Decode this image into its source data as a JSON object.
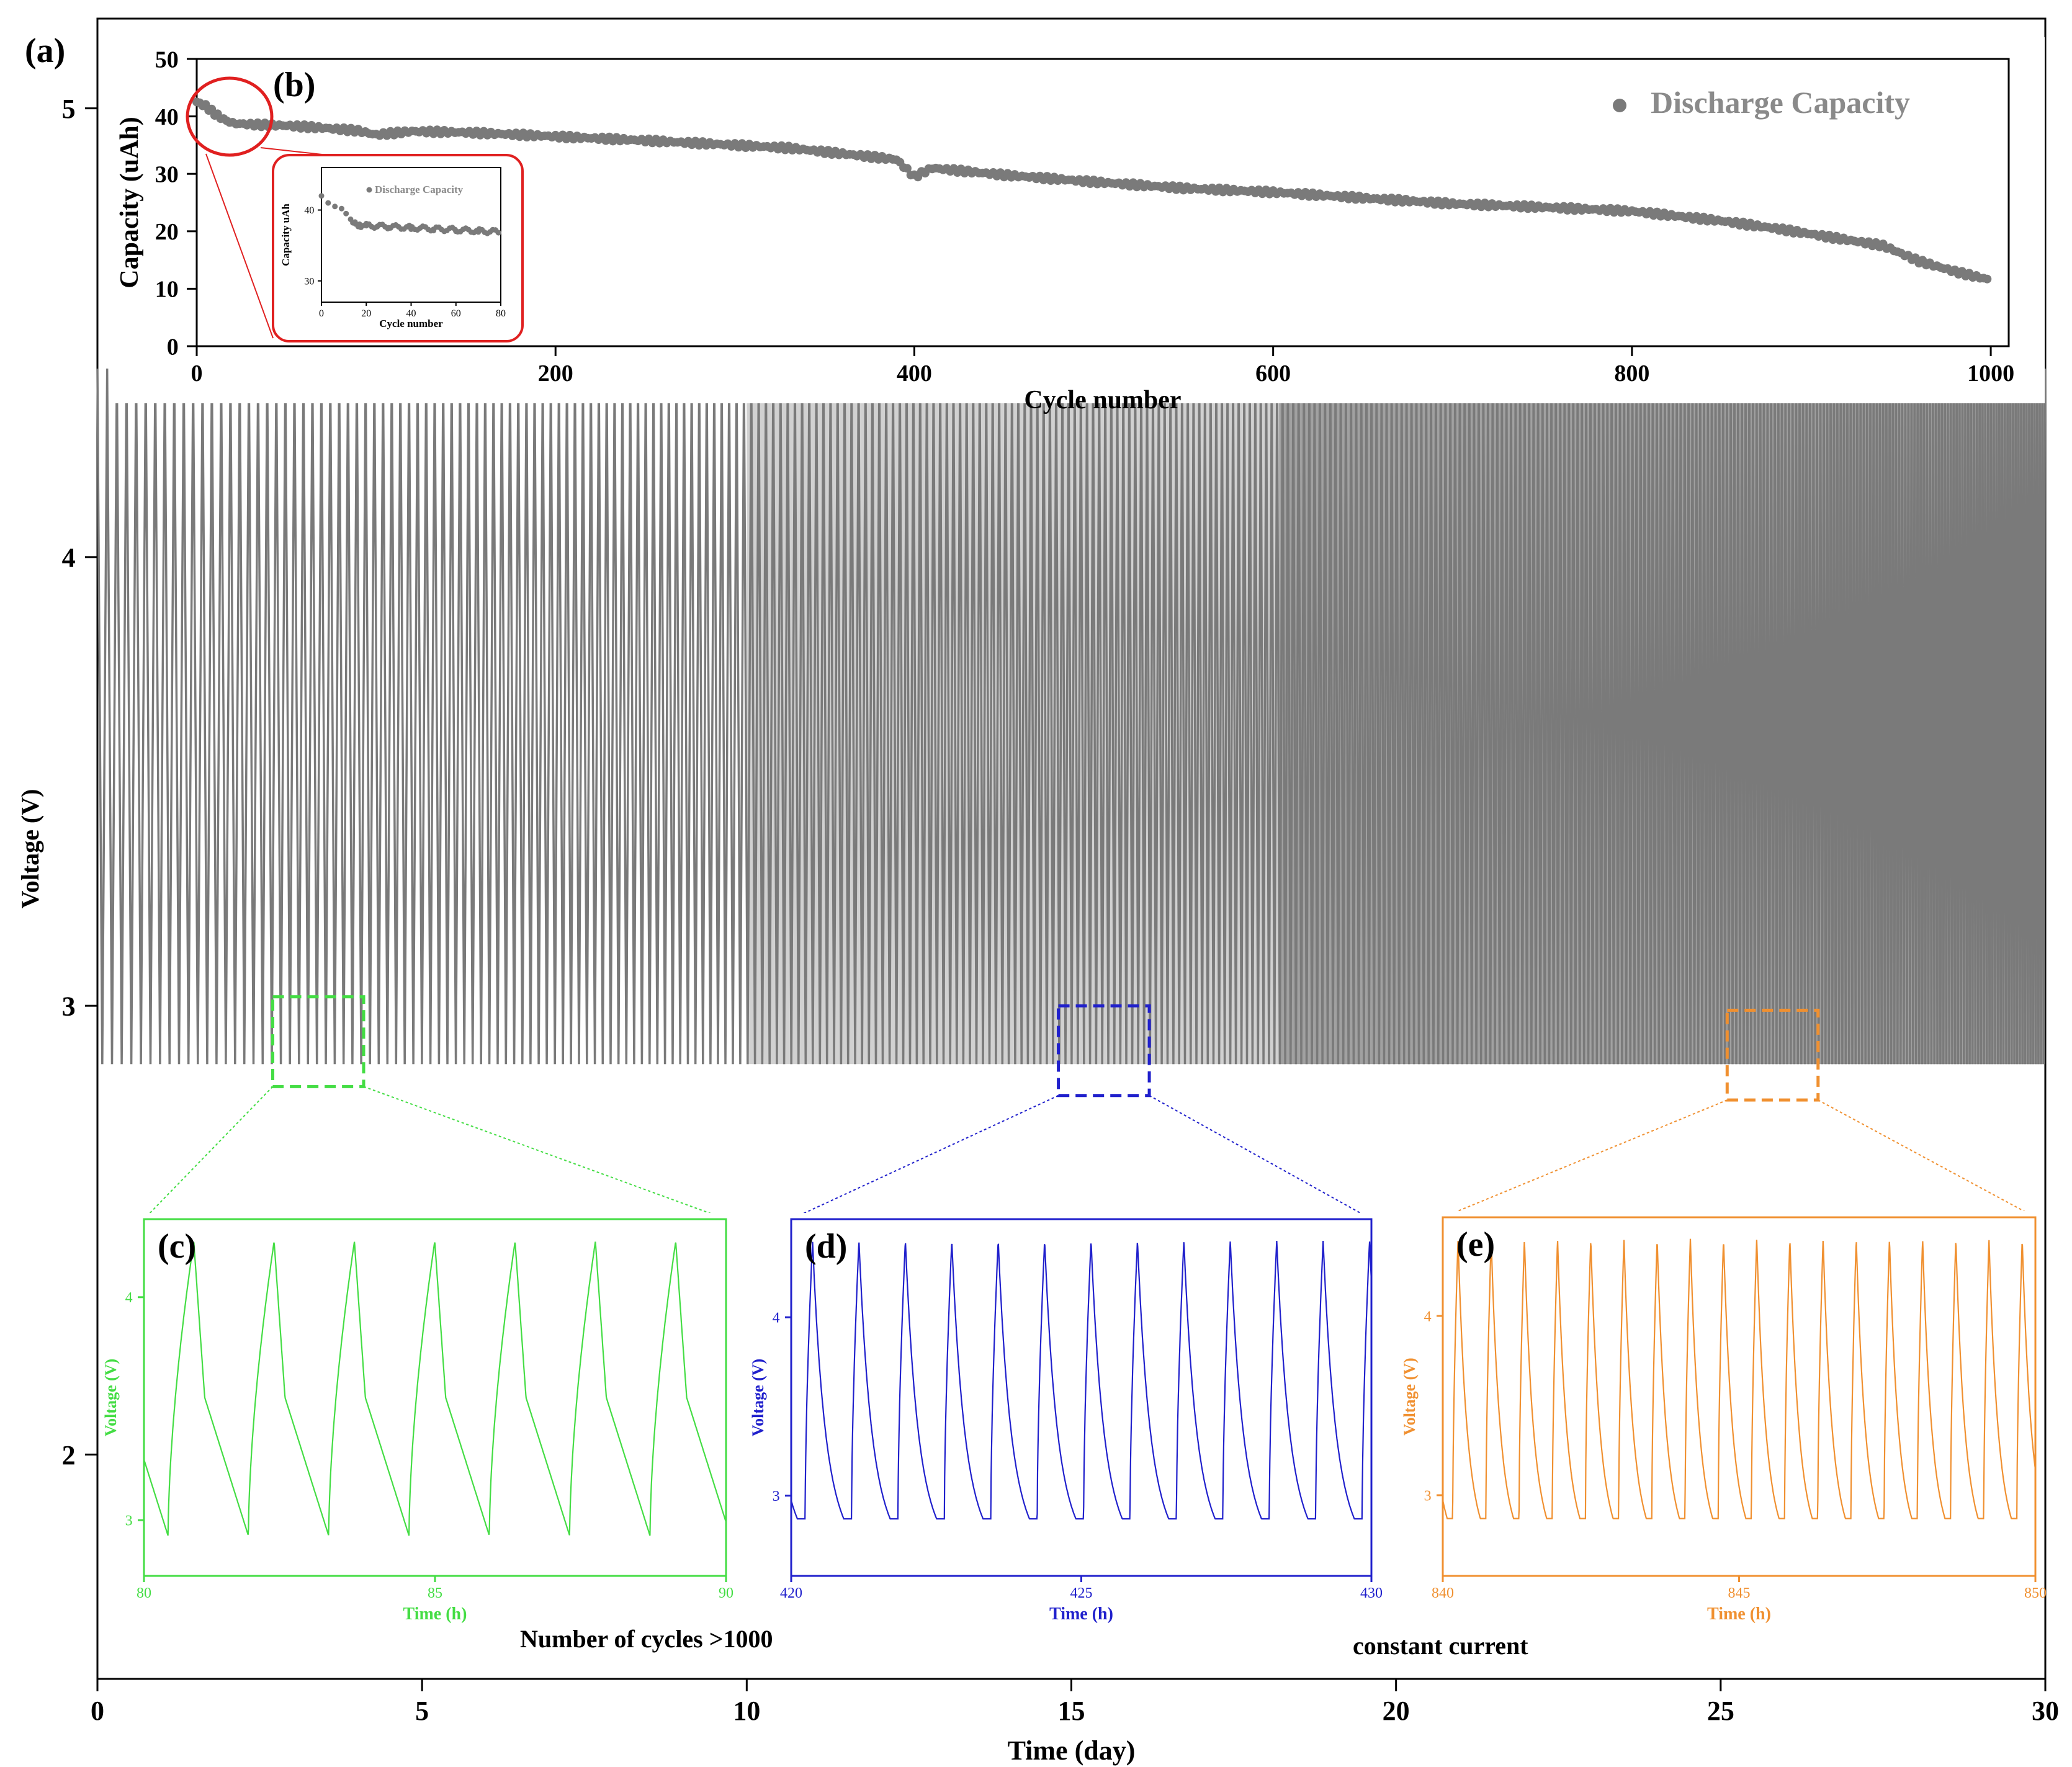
{
  "figure": {
    "panel_labels": {
      "a": "(a)",
      "b": "(b)",
      "c": "(c)",
      "d": "(d)",
      "e": "(e)"
    },
    "annotations": {
      "cycles": "Number of cycles >1000",
      "mode": "constant current"
    },
    "colors": {
      "data_gray": "#7a7a7a",
      "circle": "#e02020",
      "green": "#44dd44",
      "blue": "#2020cc",
      "orange": "#f09030"
    }
  },
  "chart_data": [
    {
      "id": "main",
      "type": "line",
      "title": "",
      "xlabel": "Time (day)",
      "ylabel": "Voltage (V)",
      "xlim": [
        0,
        30
      ],
      "ylim": [
        1.5,
        5.2
      ],
      "xticks": [
        0,
        5,
        10,
        15,
        20,
        25,
        30
      ],
      "yticks": [
        2,
        3,
        4,
        5
      ],
      "series": [
        {
          "name": "Voltage",
          "v_max": 4.42,
          "v_min": 2.87,
          "period_day_start": 0.15,
          "period_day_end": 0.04
        }
      ],
      "zoom_regions": [
        {
          "id": "c",
          "x_range": [
            2.7,
            4.1
          ],
          "y_range": [
            2.82,
            3.02
          ],
          "color": "#44dd44"
        },
        {
          "id": "d",
          "x_range": [
            14.8,
            16.2
          ],
          "y_range": [
            2.8,
            3.0
          ],
          "color": "#2020cc"
        },
        {
          "id": "e",
          "x_range": [
            25.1,
            26.5
          ],
          "y_range": [
            2.79,
            2.99
          ],
          "color": "#f09030"
        }
      ]
    },
    {
      "id": "b",
      "type": "scatter",
      "title": "",
      "xlabel": "Cycle number",
      "ylabel": "Capacity (uAh)",
      "xlim": [
        0,
        1010
      ],
      "ylim": [
        0,
        50
      ],
      "xticks": [
        0,
        200,
        400,
        600,
        800,
        1000
      ],
      "yticks": [
        0,
        10,
        20,
        30,
        40,
        50
      ],
      "legend": "Discharge Capacity",
      "points": [
        [
          0,
          42.5
        ],
        [
          5,
          41.8
        ],
        [
          10,
          40.5
        ],
        [
          15,
          39.5
        ],
        [
          20,
          38.8
        ],
        [
          30,
          38.6
        ],
        [
          50,
          38.4
        ],
        [
          70,
          38.0
        ],
        [
          90,
          37.5
        ],
        [
          100,
          36.8
        ],
        [
          120,
          37.4
        ],
        [
          150,
          37.2
        ],
        [
          180,
          36.8
        ],
        [
          200,
          36.5
        ],
        [
          250,
          35.8
        ],
        [
          300,
          35.0
        ],
        [
          330,
          34.5
        ],
        [
          360,
          33.5
        ],
        [
          390,
          32.5
        ],
        [
          400,
          29.5
        ],
        [
          410,
          31.0
        ],
        [
          450,
          29.8
        ],
        [
          500,
          28.6
        ],
        [
          550,
          27.5
        ],
        [
          600,
          26.8
        ],
        [
          650,
          25.8
        ],
        [
          700,
          24.8
        ],
        [
          750,
          24.2
        ],
        [
          800,
          23.5
        ],
        [
          850,
          21.8
        ],
        [
          880,
          20.5
        ],
        [
          900,
          19.5
        ],
        [
          940,
          17.5
        ],
        [
          960,
          14.8
        ],
        [
          980,
          13.0
        ],
        [
          1000,
          11.5
        ]
      ]
    },
    {
      "id": "b_inset",
      "type": "scatter",
      "xlabel": "Cycle number",
      "ylabel": "Capacity uAh",
      "xlim": [
        0,
        80
      ],
      "ylim": [
        27,
        46
      ],
      "xticks": [
        0,
        20,
        40,
        60,
        80
      ],
      "yticks": [
        30,
        40
      ],
      "legend": "Discharge Capacity",
      "points": [
        [
          0,
          42.0
        ],
        [
          3,
          41.0
        ],
        [
          6,
          40.5
        ],
        [
          9,
          40.2
        ],
        [
          11,
          39.5
        ],
        [
          13,
          38.7
        ],
        [
          15,
          38.3
        ],
        [
          17,
          38.0
        ],
        [
          20,
          37.8
        ],
        [
          25,
          37.7
        ],
        [
          30,
          37.5
        ],
        [
          40,
          37.3
        ],
        [
          50,
          37.1
        ],
        [
          60,
          37.0
        ],
        [
          70,
          36.9
        ],
        [
          79,
          36.8
        ]
      ]
    },
    {
      "id": "c",
      "type": "line",
      "xlabel": "Time (h)",
      "ylabel": "Voltage (V)",
      "xlim": [
        80,
        90
      ],
      "ylim": [
        2.75,
        4.35
      ],
      "xticks": [
        80,
        85,
        90
      ],
      "yticks": [
        3,
        4
      ],
      "color": "#44dd44",
      "period_h": 1.38,
      "v_max": 4.25,
      "v_min": 2.93
    },
    {
      "id": "d",
      "type": "line",
      "xlabel": "Time (h)",
      "ylabel": "Voltage (V)",
      "xlim": [
        420,
        430
      ],
      "ylim": [
        2.55,
        4.55
      ],
      "xticks": [
        420,
        425,
        430
      ],
      "yticks": [
        3,
        4
      ],
      "color": "#2020cc",
      "period_h": 0.8,
      "v_max": 4.43,
      "v_min": 2.87
    },
    {
      "id": "e",
      "type": "line",
      "xlabel": "Time (h)",
      "ylabel": "Voltage (V)",
      "xlim": [
        840,
        850
      ],
      "ylim": [
        2.55,
        4.55
      ],
      "xticks": [
        840,
        845,
        850
      ],
      "yticks": [
        3,
        4
      ],
      "color": "#f09030",
      "period_h": 0.56,
      "v_max": 4.43,
      "v_min": 2.87
    }
  ]
}
